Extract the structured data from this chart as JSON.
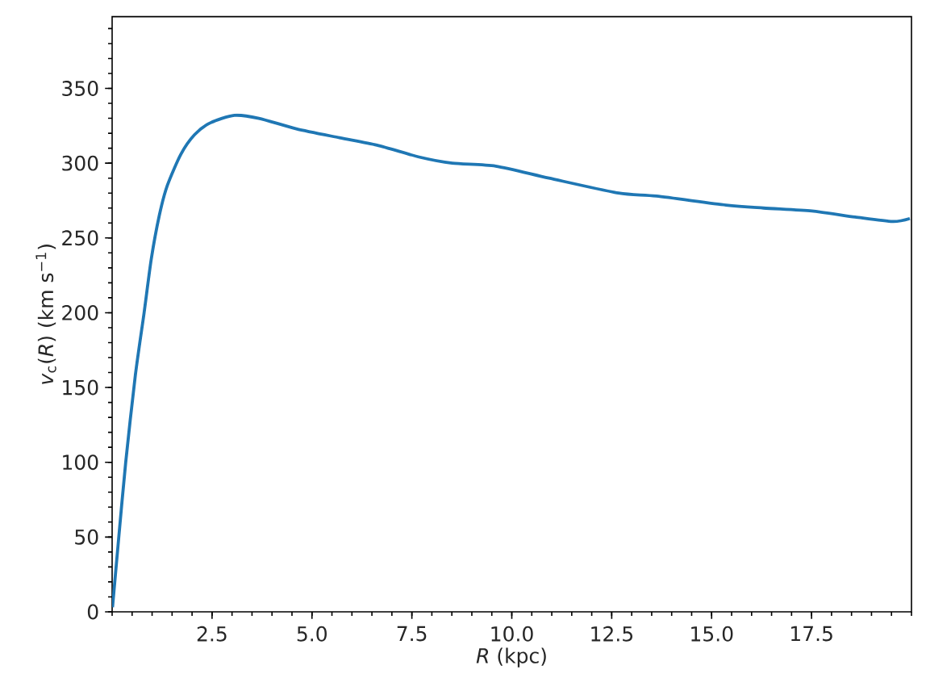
{
  "chart_data": {
    "type": "line",
    "xlabel": "*R* (kpc)",
    "ylabel": "*v*$_{c}$(*R*) (km s$^{−1}$)",
    "x": [
      0.01,
      0.15,
      0.34,
      0.58,
      0.8,
      0.98,
      1.18,
      1.38,
      1.72,
      2.06,
      2.46,
      3.06,
      3.67,
      4.61,
      5.69,
      6.63,
      7.7,
      8.51,
      9.6,
      10.93,
      12.67,
      13.62,
      15.36,
      16.3,
      17.51,
      18.59,
      19.53,
      19.96
    ],
    "series": [
      {
        "color": "#1f77b4",
        "values": [
          3,
          45,
          100,
          158,
          200,
          236,
          265,
          285,
          306,
          319,
          327,
          332,
          330,
          323,
          317,
          312,
          304,
          300,
          298,
          290,
          280,
          278,
          272,
          270,
          268,
          264,
          261,
          263
        ]
      }
    ],
    "xlim": [
      0,
      20
    ],
    "ylim": [
      0,
      398
    ],
    "xticks": [
      2.5,
      {
        "value": 5,
        "label": "5.0"
      },
      7.5,
      {
        "value": 10,
        "label": "10.0"
      },
      12.5,
      {
        "value": 15,
        "label": "15.0"
      },
      17.5
    ],
    "yticks": [
      0,
      50,
      100,
      150,
      200,
      250,
      300,
      350
    ]
  }
}
